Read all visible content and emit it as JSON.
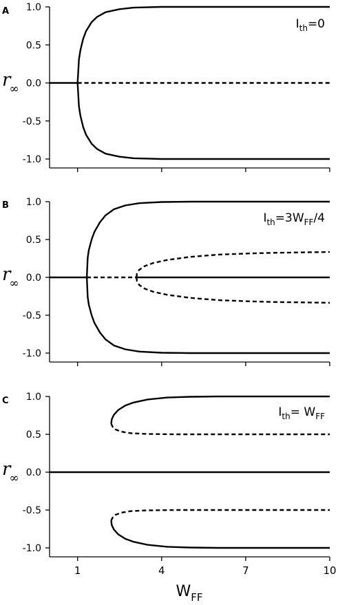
{
  "chart_data": [
    {
      "type": "line",
      "panel_label": "A",
      "annotation": "Ith=0",
      "annotation_parts": {
        "main": "I",
        "sub": "th",
        "rest": "=0"
      },
      "ylabel": {
        "main": "r",
        "sub": "∞"
      },
      "xlabel": "",
      "xlim": [
        0,
        10
      ],
      "ylim": [
        -1,
        1
      ],
      "xticks": [
        1,
        4,
        7,
        10
      ],
      "yticks": [
        -1.0,
        -0.5,
        0.0,
        0.5,
        1.0
      ],
      "ytick_labels": [
        "-1.0",
        "-0.5",
        "0.0",
        "0.5",
        "1.0"
      ],
      "xtick_labels": [],
      "series": [
        {
          "style": "solid",
          "x": [
            0,
            1.0
          ],
          "y": [
            0,
            0
          ]
        },
        {
          "style": "dashed",
          "x": [
            1.0,
            10
          ],
          "y": [
            0,
            0
          ]
        },
        {
          "style": "solid",
          "x": [
            1.0,
            1.05,
            1.1,
            1.2,
            1.3,
            1.5,
            1.7,
            2.0,
            2.5,
            3.0,
            4.0,
            5.0,
            7.0,
            10.0
          ],
          "y": [
            0.0,
            0.31,
            0.43,
            0.58,
            0.68,
            0.8,
            0.87,
            0.93,
            0.97,
            0.99,
            1.0,
            1.0,
            1.0,
            1.0
          ]
        },
        {
          "style": "solid",
          "x": [
            1.0,
            1.05,
            1.1,
            1.2,
            1.3,
            1.5,
            1.7,
            2.0,
            2.5,
            3.0,
            4.0,
            5.0,
            7.0,
            10.0
          ],
          "y": [
            0.0,
            -0.31,
            -0.43,
            -0.58,
            -0.68,
            -0.8,
            -0.87,
            -0.93,
            -0.97,
            -0.99,
            -1.0,
            -1.0,
            -1.0,
            -1.0
          ]
        }
      ]
    },
    {
      "type": "line",
      "panel_label": "B",
      "annotation": "Ith=3WFF/4",
      "annotation_parts": {
        "main": "I",
        "sub": "th",
        "rest": "=3W",
        "sub2": "FF",
        "rest2": "/4"
      },
      "ylabel": {
        "main": "r",
        "sub": "∞"
      },
      "xlabel": "",
      "xlim": [
        0,
        10
      ],
      "ylim": [
        -1,
        1
      ],
      "xticks": [
        1,
        4,
        7,
        10
      ],
      "yticks": [
        -1.0,
        -0.5,
        0.0,
        0.5,
        1.0
      ],
      "ytick_labels": [
        "-1.0",
        "-0.5",
        "0.0",
        "0.5",
        "1.0"
      ],
      "xtick_labels": [],
      "series": [
        {
          "style": "solid",
          "x": [
            0,
            1.33
          ],
          "y": [
            0,
            0
          ]
        },
        {
          "style": "dashed",
          "x": [
            1.33,
            3.1
          ],
          "y": [
            0,
            0
          ]
        },
        {
          "style": "solid",
          "x": [
            3.1,
            10
          ],
          "y": [
            0,
            0
          ]
        },
        {
          "style": "solid",
          "x": [
            1.33,
            1.36,
            1.4,
            1.5,
            1.6,
            1.8,
            2.0,
            2.3,
            2.7,
            3.2,
            4.0,
            5.0,
            7.0,
            10.0
          ],
          "y": [
            0.0,
            0.26,
            0.36,
            0.5,
            0.6,
            0.73,
            0.82,
            0.9,
            0.95,
            0.98,
            0.995,
            1.0,
            1.0,
            1.0
          ]
        },
        {
          "style": "solid",
          "x": [
            1.33,
            1.36,
            1.4,
            1.5,
            1.6,
            1.8,
            2.0,
            2.3,
            2.7,
            3.2,
            4.0,
            5.0,
            7.0,
            10.0
          ],
          "y": [
            0.0,
            -0.26,
            -0.36,
            -0.5,
            -0.6,
            -0.73,
            -0.82,
            -0.9,
            -0.95,
            -0.98,
            -0.995,
            -1.0,
            -1.0,
            -1.0
          ]
        },
        {
          "style": "dashed",
          "x": [
            3.1,
            3.12,
            3.2,
            3.4,
            3.7,
            4.2,
            5.0,
            6.0,
            7.0,
            8.0,
            9.0,
            10.0
          ],
          "y": [
            0.0,
            0.05,
            0.1,
            0.15,
            0.19,
            0.23,
            0.27,
            0.3,
            0.315,
            0.325,
            0.33,
            0.335
          ]
        },
        {
          "style": "dashed",
          "x": [
            3.1,
            3.12,
            3.2,
            3.4,
            3.7,
            4.2,
            5.0,
            6.0,
            7.0,
            8.0,
            9.0,
            10.0
          ],
          "y": [
            0.0,
            -0.05,
            -0.1,
            -0.15,
            -0.19,
            -0.23,
            -0.27,
            -0.3,
            -0.315,
            -0.325,
            -0.33,
            -0.335
          ]
        }
      ]
    },
    {
      "type": "line",
      "panel_label": "C",
      "annotation": "Ith= WFF",
      "annotation_parts": {
        "main": "I",
        "sub": "th",
        "rest": "= W",
        "sub2": "FF",
        "rest2": ""
      },
      "ylabel": {
        "main": "r",
        "sub": "∞"
      },
      "xlabel": {
        "main": "W",
        "sub": "FF"
      },
      "xlim": [
        0,
        10
      ],
      "ylim": [
        -1,
        1
      ],
      "xticks": [
        1,
        4,
        7,
        10
      ],
      "yticks": [
        -1.0,
        -0.5,
        0.0,
        0.5,
        1.0
      ],
      "ytick_labels": [
        "-1.0",
        "-0.5",
        "0.0",
        "0.5",
        "1.0"
      ],
      "xtick_labels": [
        "1",
        "4",
        "7",
        "10"
      ],
      "series": [
        {
          "style": "solid",
          "x": [
            0,
            10
          ],
          "y": [
            0,
            0
          ]
        },
        {
          "style": "solid",
          "x": [
            2.2,
            2.22,
            2.3,
            2.45,
            2.7,
            3.0,
            3.5,
            4.2,
            5.0,
            6.0,
            7.0,
            10.0
          ],
          "y": [
            0.64,
            0.7,
            0.76,
            0.82,
            0.88,
            0.92,
            0.96,
            0.985,
            0.995,
            1.0,
            1.0,
            1.0
          ]
        },
        {
          "style": "dashed",
          "x": [
            2.2,
            2.25,
            2.35,
            2.55,
            2.9,
            3.5,
            4.5,
            6.0,
            8.0,
            10.0
          ],
          "y": [
            0.64,
            0.6,
            0.565,
            0.535,
            0.515,
            0.505,
            0.5,
            0.5,
            0.5,
            0.5
          ]
        },
        {
          "style": "solid",
          "x": [
            2.2,
            2.22,
            2.3,
            2.45,
            2.7,
            3.0,
            3.5,
            4.2,
            5.0,
            6.0,
            7.0,
            10.0
          ],
          "y": [
            -0.64,
            -0.7,
            -0.76,
            -0.82,
            -0.88,
            -0.92,
            -0.96,
            -0.985,
            -0.995,
            -1.0,
            -1.0,
            -1.0
          ]
        },
        {
          "style": "dashed",
          "x": [
            2.2,
            2.25,
            2.35,
            2.55,
            2.9,
            3.5,
            4.5,
            6.0,
            8.0,
            10.0
          ],
          "y": [
            -0.64,
            -0.6,
            -0.565,
            -0.535,
            -0.515,
            -0.505,
            -0.5,
            -0.5,
            -0.5,
            -0.5
          ]
        }
      ]
    }
  ]
}
